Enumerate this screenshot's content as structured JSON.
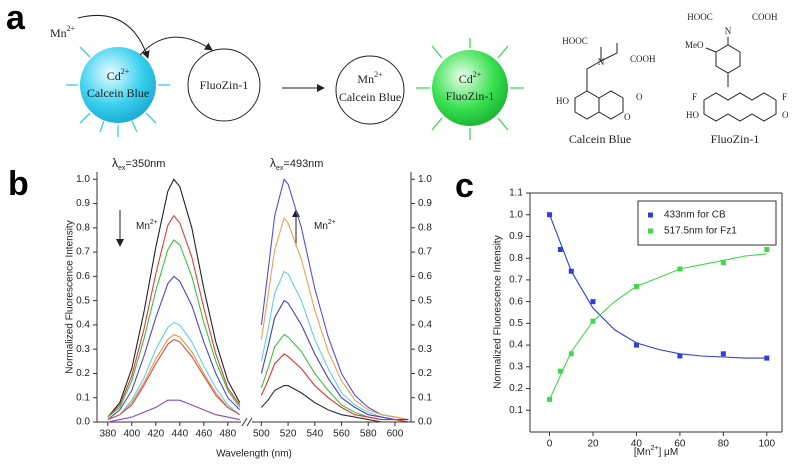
{
  "panel_labels": [
    "a",
    "b",
    "c"
  ],
  "diagram": {
    "mn_in": {
      "base": "Mn",
      "sup": "2+"
    },
    "sphere1": {
      "base": "Cd",
      "sup": "2+",
      "text": "Calcein Blue"
    },
    "circle1": "FluoZin-1",
    "circle2": {
      "base": "Mn",
      "sup": "2+",
      "text": "Calcein Blue"
    },
    "sphere2": {
      "base": "Cd",
      "sup": "2+",
      "text": "FluoZin-1"
    },
    "calcein": {
      "name": "Calcein Blue",
      "atoms": [
        "HOOC",
        "N",
        "COOH",
        "HO",
        "O",
        "O"
      ]
    },
    "fluozin": {
      "name": "FluoZin-1",
      "atoms": [
        "HOOC",
        "N",
        "COOH",
        "MeO",
        "F",
        "F",
        "HO",
        "O"
      ]
    }
  },
  "chart_data": [
    {
      "type": "line",
      "panel": "b",
      "x_label": "Wavelength (nm)",
      "y_label": "Normalized Fluorescence Intensity",
      "annotations": {
        "lambda": "λ",
        "sub": "ex",
        "eq": "=350nm",
        "mn": "Mn",
        "sup": "2+"
      },
      "x": [
        380,
        390,
        400,
        410,
        420,
        430,
        435,
        440,
        450,
        460,
        470,
        480,
        490
      ],
      "xlim": [
        371,
        491
      ],
      "xticks": [
        380,
        400,
        420,
        440,
        460,
        480
      ],
      "ylim": [
        0,
        1.03
      ],
      "yticks": [
        {
          "value": 0,
          "label": "0.0"
        },
        0.1,
        0.2,
        0.3,
        0.4,
        0.5,
        0.6,
        0.7,
        0.8,
        0.9,
        {
          "value": 1,
          "label": "1.0"
        }
      ],
      "series": [
        {
          "color": "#222222",
          "values": [
            0.02,
            0.08,
            0.22,
            0.45,
            0.72,
            0.95,
            1.0,
            0.97,
            0.8,
            0.55,
            0.33,
            0.17,
            0.08
          ]
        },
        {
          "color": "#e03c3c",
          "values": [
            0.02,
            0.07,
            0.19,
            0.38,
            0.61,
            0.81,
            0.85,
            0.82,
            0.68,
            0.47,
            0.28,
            0.14,
            0.07
          ]
        },
        {
          "color": "#3cc03c",
          "values": [
            0.02,
            0.06,
            0.17,
            0.34,
            0.54,
            0.71,
            0.75,
            0.73,
            0.6,
            0.41,
            0.25,
            0.13,
            0.06
          ]
        },
        {
          "color": "#4848d0",
          "values": [
            0.01,
            0.05,
            0.13,
            0.27,
            0.43,
            0.57,
            0.6,
            0.58,
            0.48,
            0.33,
            0.2,
            0.1,
            0.05
          ]
        },
        {
          "color": "#5fd0f0",
          "values": [
            0.01,
            0.03,
            0.09,
            0.18,
            0.3,
            0.39,
            0.41,
            0.4,
            0.33,
            0.23,
            0.14,
            0.07,
            0.03
          ]
        },
        {
          "color": "#f09040",
          "values": [
            0.01,
            0.03,
            0.08,
            0.16,
            0.26,
            0.34,
            0.36,
            0.35,
            0.29,
            0.2,
            0.12,
            0.06,
            0.03
          ]
        },
        {
          "color": "#d05050",
          "values": [
            0.01,
            0.03,
            0.07,
            0.15,
            0.24,
            0.32,
            0.34,
            0.33,
            0.27,
            0.19,
            0.11,
            0.06,
            0.03
          ]
        },
        {
          "color": "#8a48c0",
          "values": [
            0,
            0.01,
            0.02,
            0.04,
            0.06,
            0.09,
            0.09,
            0.09,
            0.07,
            0.05,
            0.03,
            0.02,
            0.01
          ]
        }
      ]
    },
    {
      "type": "line",
      "panel": "b",
      "annotations": {
        "lambda": "λ",
        "sub": "ex",
        "eq": "=493nm",
        "mn": "Mn",
        "sup": "2+"
      },
      "x": [
        500,
        505,
        510,
        517,
        520,
        530,
        540,
        550,
        560,
        570,
        580,
        590,
        600,
        610
      ],
      "xlim": [
        493,
        612
      ],
      "xticks": [
        500,
        520,
        540,
        560,
        580,
        600
      ],
      "ylim": [
        0,
        1.03
      ],
      "yticks": [
        {
          "value": 0,
          "label": "0.0"
        },
        0.1,
        0.2,
        0.3,
        0.4,
        0.5,
        0.6,
        0.7,
        0.8,
        0.9,
        {
          "value": 1,
          "label": "1.0"
        }
      ],
      "series": [
        {
          "color": "#5050e0",
          "values": [
            0.4,
            0.62,
            0.85,
            1.0,
            0.98,
            0.8,
            0.55,
            0.35,
            0.2,
            0.11,
            0.06,
            0.03,
            0.02,
            0.01
          ]
        },
        {
          "color": "#f0a050",
          "values": [
            0.34,
            0.52,
            0.71,
            0.84,
            0.82,
            0.67,
            0.46,
            0.29,
            0.17,
            0.09,
            0.05,
            0.03,
            0.02,
            0.01
          ]
        },
        {
          "color": "#60d0e0",
          "values": [
            0.25,
            0.38,
            0.53,
            0.62,
            0.61,
            0.5,
            0.34,
            0.22,
            0.12,
            0.07,
            0.04,
            0.02,
            0.01,
            0.01
          ]
        },
        {
          "color": "#4040c0",
          "values": [
            0.2,
            0.31,
            0.43,
            0.5,
            0.49,
            0.4,
            0.28,
            0.18,
            0.1,
            0.06,
            0.03,
            0.02,
            0.01,
            0.01
          ]
        },
        {
          "color": "#40c040",
          "values": [
            0.14,
            0.22,
            0.31,
            0.36,
            0.35,
            0.29,
            0.2,
            0.13,
            0.07,
            0.04,
            0.02,
            0.01,
            0.01,
            0
          ]
        },
        {
          "color": "#e03030",
          "values": [
            0.11,
            0.17,
            0.24,
            0.28,
            0.27,
            0.22,
            0.15,
            0.1,
            0.06,
            0.03,
            0.02,
            0.01,
            0.01,
            0
          ]
        },
        {
          "color": "#303030",
          "values": [
            0.06,
            0.09,
            0.13,
            0.15,
            0.15,
            0.12,
            0.08,
            0.05,
            0.03,
            0.02,
            0.01,
            0,
            0,
            0
          ]
        }
      ]
    },
    {
      "type": "scatter",
      "panel": "c",
      "x_label": {
        "pre": "[Mn",
        "sup": "2+",
        "post": "] μM"
      },
      "y_label": "Normalized Fluorescence Intensity",
      "x": [
        0,
        5,
        10,
        20,
        40,
        60,
        80,
        100
      ],
      "fit_x": [
        0,
        10,
        20,
        30,
        40,
        50,
        60,
        70,
        80,
        90,
        100
      ],
      "xlim": [
        -9,
        107
      ],
      "xticks": [
        0,
        20,
        40,
        60,
        80,
        100
      ],
      "ylim": [
        0,
        1.1
      ],
      "yticks": [
        0.1,
        0.2,
        0.3,
        0.4,
        0.5,
        0.6,
        0.7,
        0.8,
        0.9,
        {
          "value": 1,
          "label": "1.0"
        },
        1.1
      ],
      "legend": "top-right",
      "series": [
        {
          "name": "433nm for CB",
          "color": "#2d3fd8",
          "values": [
            1.0,
            0.84,
            0.74,
            0.6,
            0.4,
            0.35,
            0.36,
            0.34
          ],
          "fit": [
            1.0,
            0.74,
            0.57,
            0.47,
            0.41,
            0.38,
            0.36,
            0.35,
            0.345,
            0.34,
            0.34
          ]
        },
        {
          "name": "517.5nm for Fz1",
          "color": "#3fd84a",
          "values": [
            0.15,
            0.28,
            0.36,
            0.51,
            0.67,
            0.75,
            0.78,
            0.84
          ],
          "fit": [
            0.15,
            0.37,
            0.51,
            0.6,
            0.67,
            0.71,
            0.75,
            0.77,
            0.79,
            0.81,
            0.82
          ]
        }
      ]
    }
  ]
}
